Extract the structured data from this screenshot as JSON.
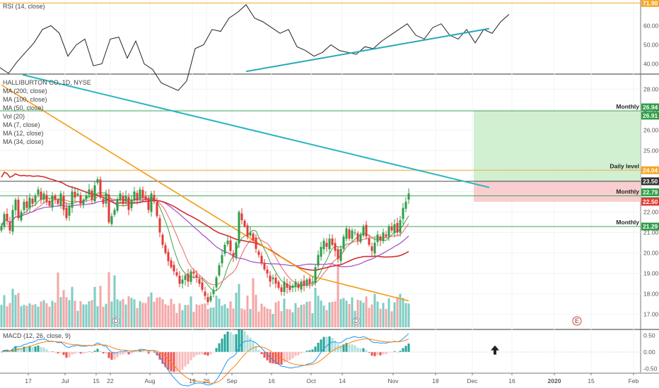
{
  "chart_data": [
    {
      "type": "line",
      "name": "rsi-panel",
      "legend": "RSI (14, close)",
      "ylim": [
        35,
        72
      ],
      "y_ticks": [
        "40.00",
        "50.00",
        "60.00"
      ],
      "level_label": "71.90",
      "level_value": 71.9,
      "x": [
        0,
        3,
        6,
        9,
        12,
        15,
        18,
        21,
        24,
        27,
        30,
        33,
        36,
        39,
        42,
        45,
        48,
        51,
        54,
        57,
        60,
        63,
        66,
        69,
        72,
        75,
        78,
        81,
        84,
        87,
        90,
        93,
        96,
        99,
        102,
        105,
        108,
        111,
        114,
        117,
        120,
        123,
        126,
        129,
        132,
        135,
        138,
        141,
        144,
        147,
        150,
        153,
        156,
        159,
        162,
        165,
        168,
        171,
        174,
        177,
        180
      ],
      "y": [
        38,
        35,
        41,
        46,
        51,
        58,
        60,
        56,
        44,
        50,
        53,
        39,
        40,
        53,
        54,
        43,
        52,
        40,
        37,
        30,
        28,
        26,
        31,
        48,
        50,
        58,
        57,
        64,
        67,
        71,
        64,
        62,
        59,
        56,
        58,
        49,
        47,
        44,
        46,
        50,
        47,
        46,
        45,
        49,
        48,
        52,
        55,
        58,
        61,
        55,
        53,
        59,
        61,
        55,
        53,
        58,
        51,
        58,
        56,
        62,
        66
      ],
      "trend_x": [
        87,
        173
      ],
      "trend_y": [
        36,
        58.5
      ],
      "trend_color": "#24a9b8"
    },
    {
      "type": "candlestick",
      "name": "price-panel",
      "legend": [
        "HALLIBURTON CO, 1D, NYSE",
        "MA (200, close)",
        "MA (100, close)",
        "MA (50, close)",
        "Vol (20)",
        "MA (7, close)",
        "MA (12, close)",
        "MA (34, close)"
      ],
      "ylim": [
        16.3,
        28.7
      ],
      "y_ticks": [
        "17.00",
        "18.00",
        "19.00",
        "20.00",
        "21.00",
        "22.00",
        "23.00",
        "24.00",
        "25.00",
        "26.00",
        "27.00",
        "28.00"
      ],
      "x_ticks": [
        {
          "label": "17",
          "x": 10
        },
        {
          "label": "Jul",
          "x": 23
        },
        {
          "label": "15",
          "x": 34
        },
        {
          "label": "22",
          "x": 39
        },
        {
          "label": "Aug",
          "x": 53
        },
        {
          "label": "19",
          "x": 68
        },
        {
          "label": "26",
          "x": 73
        },
        {
          "label": "Sep",
          "x": 82
        },
        {
          "label": "16",
          "x": 96
        },
        {
          "label": "Oct",
          "x": 110
        },
        {
          "label": "14",
          "x": 121
        },
        {
          "label": "Nov",
          "x": 139
        },
        {
          "label": "18",
          "x": 154
        },
        {
          "label": "Dec",
          "x": 167
        },
        {
          "label": "16",
          "x": 181
        },
        {
          "label": "2020",
          "x": 196
        },
        {
          "label": "15",
          "x": 209
        },
        {
          "label": "Feb",
          "x": 224
        },
        {
          "label": "14",
          "x": 234
        }
      ],
      "x_range": [
        0,
        247
      ],
      "closes": [
        21.3,
        21.9,
        21.6,
        21.1,
        22.1,
        22.6,
        21.7,
        22.0,
        22.5,
        22.2,
        22.7,
        22.4,
        22.8,
        23.1,
        22.6,
        22.9,
        22.5,
        22.3,
        22.8,
        22.6,
        22.4,
        22.9,
        22.1,
        21.7,
        22.3,
        23.0,
        22.7,
        22.9,
        22.4,
        22.6,
        22.8,
        23.1,
        22.6,
        23.3,
        23.6,
        22.7,
        22.4,
        22.9,
        21.5,
        21.8,
        22.1,
        22.6,
        22.9,
        22.4,
        22.8,
        22.1,
        22.6,
        23.0,
        22.6,
        23.1,
        22.7,
        22.6,
        22.1,
        22.9,
        22.5,
        21.8,
        21.0,
        20.4,
        20.0,
        19.6,
        19.3,
        19.1,
        18.9,
        18.5,
        18.7,
        18.9,
        18.6,
        19.1,
        19.0,
        18.8,
        18.5,
        18.2,
        17.9,
        17.6,
        17.9,
        18.2,
        18.8,
        19.4,
        19.9,
        20.4,
        20.6,
        20.1,
        19.8,
        20.5,
        22.0,
        21.6,
        21.3,
        20.8,
        21.0,
        20.6,
        20.2,
        19.9,
        19.5,
        19.2,
        19.0,
        18.6,
        18.8,
        18.5,
        18.3,
        18.1,
        18.6,
        18.3,
        18.2,
        18.4,
        18.6,
        18.3,
        18.6,
        18.4,
        18.7,
        18.5,
        18.6,
        19.3,
        19.9,
        20.3,
        20.6,
        20.3,
        20.7,
        20.4,
        20.1,
        19.7,
        20.2,
        20.8,
        21.2,
        20.7,
        21.1,
        21.0,
        20.6,
        20.9,
        21.3,
        20.8,
        20.4,
        20.1,
        20.5,
        20.9,
        20.6,
        21.0,
        20.8,
        21.3,
        21.1,
        21.4,
        21.0,
        21.6,
        22.2,
        22.5,
        22.9
      ],
      "trend_x": [
        8,
        173
      ],
      "trend_y": [
        28.7,
        23.2
      ],
      "trend_color": "#2ab5c1",
      "levels": [
        {
          "value": 26.94,
          "label": "26.94",
          "color": "#2e9e47",
          "note": "Monthly"
        },
        {
          "value": 26.91,
          "label": "26.91",
          "color": "#2e9e47",
          "note": ""
        },
        {
          "value": 24.04,
          "label": "24.04",
          "color": "#f5a623",
          "note": "Daily level"
        },
        {
          "value": 23.5,
          "label": "23.50",
          "color": "#333333",
          "note": ""
        },
        {
          "value": 22.79,
          "label": "22.79",
          "color": "#2e9e47",
          "note": "Monthly"
        },
        {
          "value": 22.74,
          "label": "22.74",
          "color": "#2e9e47",
          "note": ""
        },
        {
          "value": 22.5,
          "label": "22.50",
          "color": "#e53935",
          "note": ""
        },
        {
          "value": 21.29,
          "label": "21.29",
          "color": "#2e9e47",
          "note": "Monthly"
        }
      ],
      "target_zone": {
        "top": 26.94,
        "bottom": 23.5,
        "color": "#c9ecc9"
      },
      "stop_zone": {
        "top": 23.5,
        "bottom": 22.5,
        "color": "#f8c9cb"
      },
      "events": [
        {
          "label": "E",
          "x": 204
        }
      ],
      "dividend_marks": [
        {
          "x": 41
        },
        {
          "x": 126
        }
      ],
      "dividend_label": "D",
      "up_color": "#2e9e47",
      "down_color": "#e53935"
    },
    {
      "type": "bar",
      "name": "macd-panel",
      "legend": "MACD (12, 26, close, 9)",
      "ylim": [
        -0.62,
        0.66
      ],
      "y_ticks": [
        "0.50",
        "0.00",
        "-0.50"
      ],
      "arrow_icon": "arrow-up-icon"
    }
  ]
}
